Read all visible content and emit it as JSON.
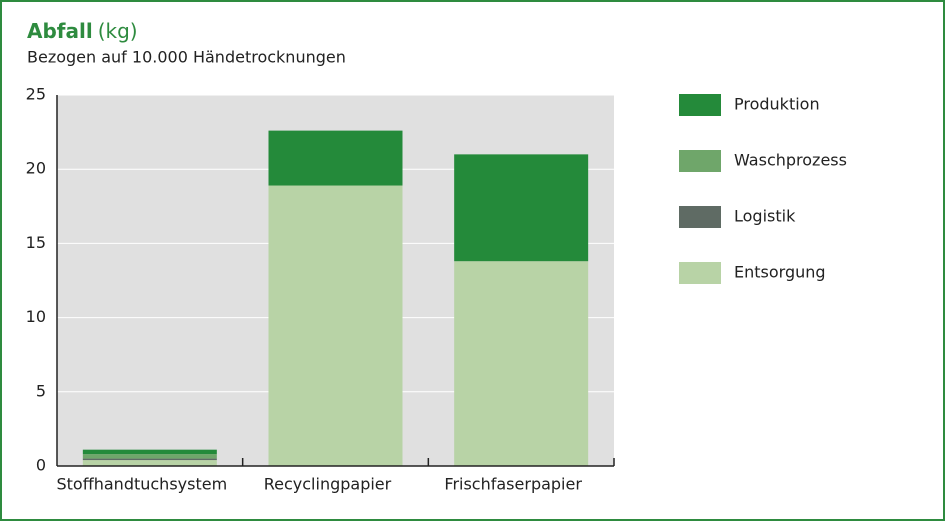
{
  "chart_data": {
    "type": "stacked_bar",
    "title": "Abfall",
    "title_unit": "(kg)",
    "subtitle": "Bezogen auf 10.000 Händetrocknungen",
    "categories": [
      "Stoffhandtuchsystem",
      "Recyclingpapier",
      "Frischfaserpapier"
    ],
    "series": [
      {
        "name": "Produktion",
        "color": "#248a3a",
        "values": [
          0.3,
          3.7,
          7.2
        ]
      },
      {
        "name": "Waschprozess",
        "color": "#6fa66a",
        "values": [
          0.3,
          0,
          0
        ]
      },
      {
        "name": "Logistik",
        "color": "#5f6b64",
        "values": [
          0.1,
          0,
          0
        ]
      },
      {
        "name": "Entsorgung",
        "color": "#b8d3a6",
        "values": [
          0.4,
          18.9,
          13.8
        ]
      }
    ],
    "ylim": [
      0,
      25
    ],
    "yticks": [
      0,
      5,
      10,
      15,
      20,
      25
    ],
    "grid": true
  }
}
